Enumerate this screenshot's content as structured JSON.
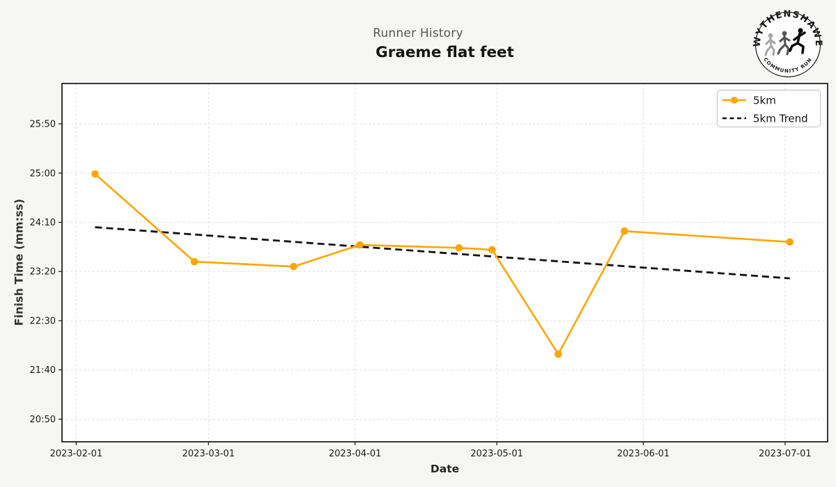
{
  "header": {
    "subtitle": "Runner History",
    "title": "Graeme flat feet"
  },
  "logo": {
    "top_text": "WYTHENSHAWE",
    "bottom_text": "COMMUNITY RUN"
  },
  "legend": {
    "series_label": "5km",
    "trend_label": "5km Trend"
  },
  "colors": {
    "series_orange": "#ffa500",
    "trend_black": "#111111",
    "figure_background": "#f6f6f4",
    "plot_background": "#ffffff",
    "grid": "#dcdcdc",
    "axis_border": "#141414",
    "subtitle_gray": "#555555"
  },
  "chart_data": {
    "type": "line",
    "title": "Graeme flat feet",
    "subtitle": "Runner History",
    "xlabel": "Date",
    "ylabel": "Finish Time (mm:ss)",
    "grid": true,
    "legend_position": "upper right",
    "xlim": [
      "2023-01-29",
      "2023-07-10"
    ],
    "ylim_mmss": [
      "20:27",
      "26:31"
    ],
    "x_ticks": [
      "2023-02-01",
      "2023-03-01",
      "2023-04-01",
      "2023-05-01",
      "2023-06-01",
      "2023-07-01"
    ],
    "y_ticks": [
      "20:50",
      "21:40",
      "22:30",
      "23:20",
      "24:10",
      "25:00",
      "25:50"
    ],
    "series": [
      {
        "name": "5km",
        "color": "#ffa500",
        "marker": "circle",
        "points": [
          {
            "date": "2023-02-05",
            "time": "24:59"
          },
          {
            "date": "2023-02-26",
            "time": "23:30"
          },
          {
            "date": "2023-03-19",
            "time": "23:25"
          },
          {
            "date": "2023-04-02",
            "time": "23:47"
          },
          {
            "date": "2023-04-23",
            "time": "23:44"
          },
          {
            "date": "2023-04-30",
            "time": "23:42"
          },
          {
            "date": "2023-05-14",
            "time": "21:56"
          },
          {
            "date": "2023-05-28",
            "time": "24:01"
          },
          {
            "date": "2023-07-02",
            "time": "23:50"
          }
        ]
      }
    ],
    "trend": {
      "name": "5km Trend",
      "color": "#111111",
      "style": "dashed",
      "points": [
        {
          "date": "2023-02-05",
          "time": "24:05"
        },
        {
          "date": "2023-07-02",
          "time": "23:13"
        }
      ]
    }
  }
}
